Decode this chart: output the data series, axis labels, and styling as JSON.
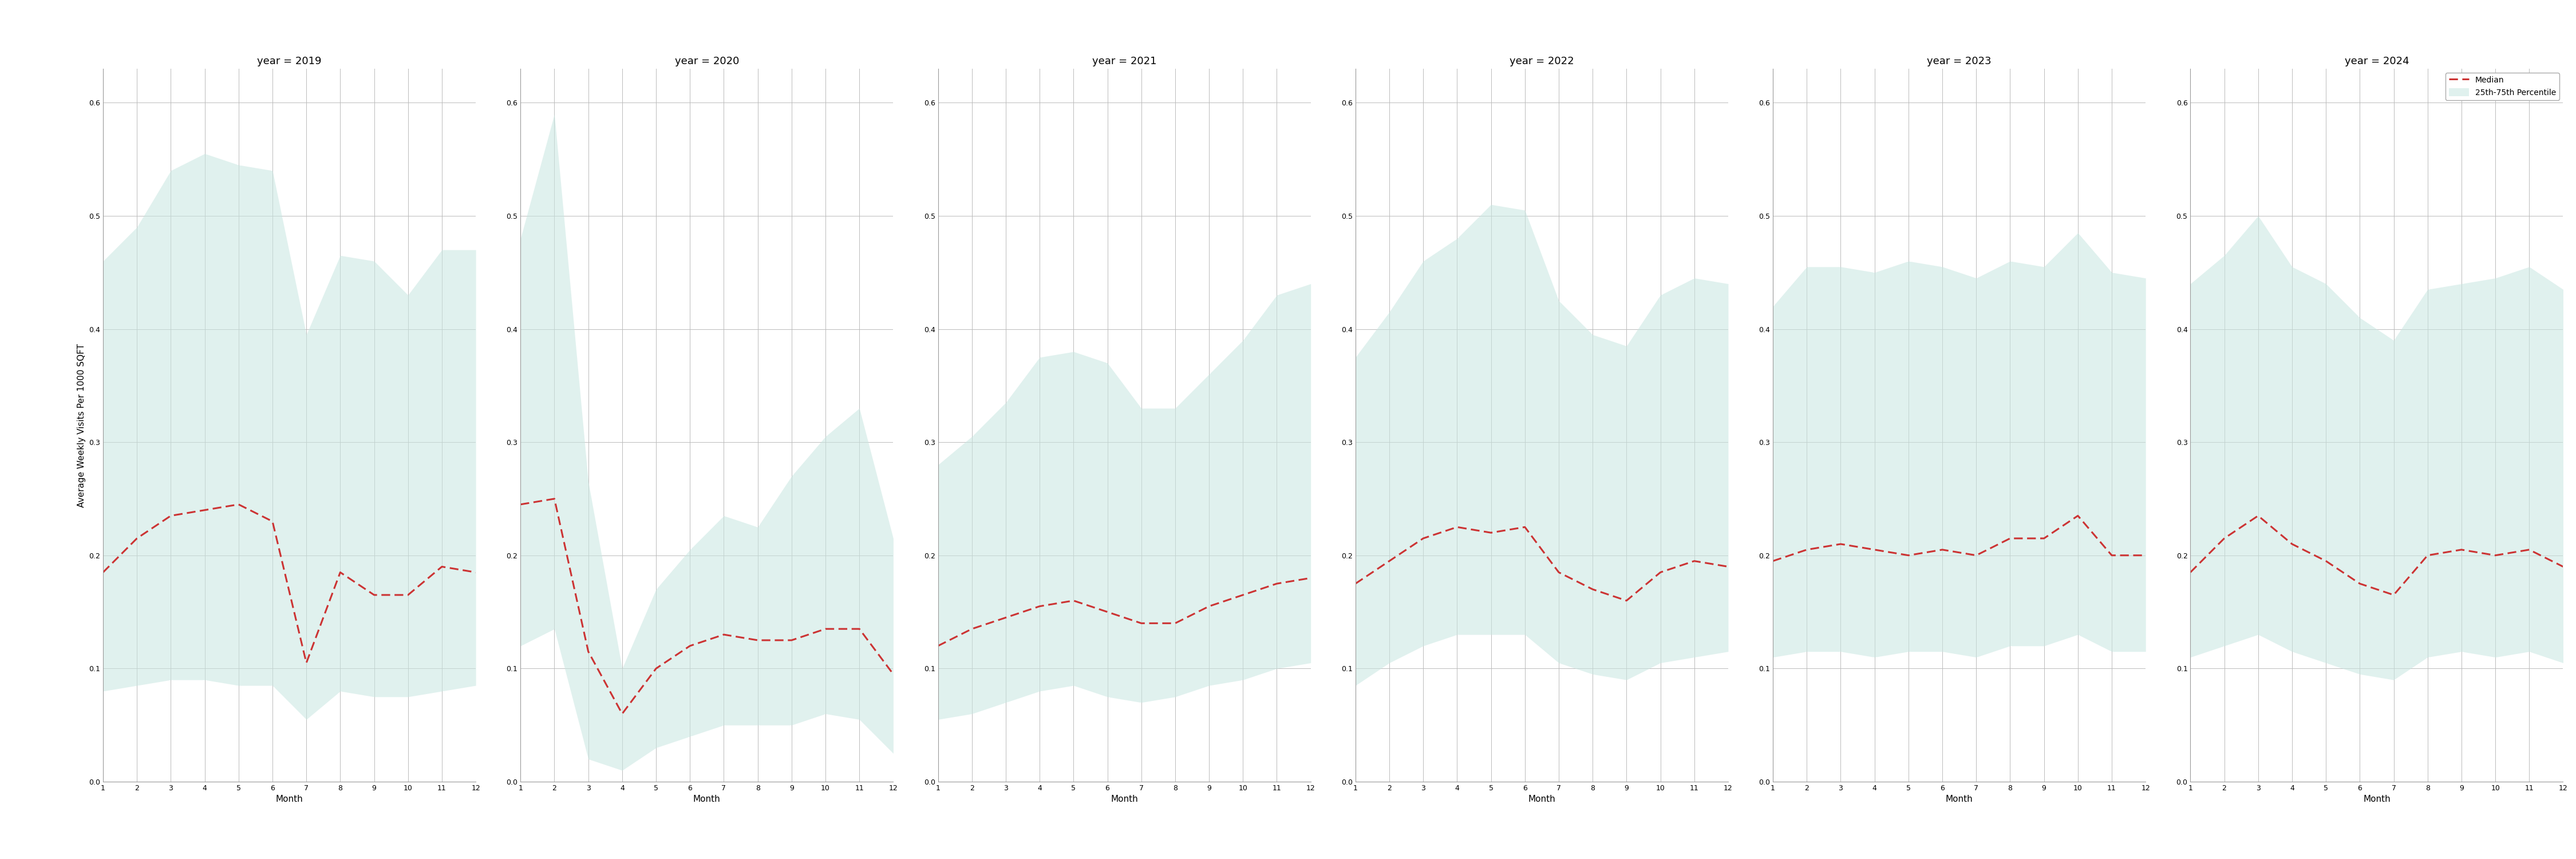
{
  "years": [
    2019,
    2020,
    2021,
    2022,
    2023,
    2024
  ],
  "months": [
    1,
    2,
    3,
    4,
    5,
    6,
    7,
    8,
    9,
    10,
    11,
    12
  ],
  "median": {
    "2019": [
      0.185,
      0.215,
      0.235,
      0.24,
      0.245,
      0.23,
      0.105,
      0.185,
      0.165,
      0.165,
      0.19,
      0.185
    ],
    "2020": [
      0.245,
      0.25,
      0.115,
      0.06,
      0.1,
      0.12,
      0.13,
      0.125,
      0.125,
      0.135,
      0.135,
      0.095
    ],
    "2021": [
      0.12,
      0.135,
      0.145,
      0.155,
      0.16,
      0.15,
      0.14,
      0.14,
      0.155,
      0.165,
      0.175,
      0.18
    ],
    "2022": [
      0.175,
      0.195,
      0.215,
      0.225,
      0.22,
      0.225,
      0.185,
      0.17,
      0.16,
      0.185,
      0.195,
      0.19
    ],
    "2023": [
      0.195,
      0.205,
      0.21,
      0.205,
      0.2,
      0.205,
      0.2,
      0.215,
      0.215,
      0.235,
      0.2,
      0.2
    ],
    "2024": [
      0.185,
      0.215,
      0.235,
      0.21,
      0.195,
      0.175,
      0.165,
      0.2,
      0.205,
      0.2,
      0.205,
      0.19
    ]
  },
  "p25": {
    "2019": [
      0.08,
      0.085,
      0.09,
      0.09,
      0.085,
      0.085,
      0.055,
      0.08,
      0.075,
      0.075,
      0.08,
      0.085
    ],
    "2020": [
      0.12,
      0.135,
      0.02,
      0.01,
      0.03,
      0.04,
      0.05,
      0.05,
      0.05,
      0.06,
      0.055,
      0.025
    ],
    "2021": [
      0.055,
      0.06,
      0.07,
      0.08,
      0.085,
      0.075,
      0.07,
      0.075,
      0.085,
      0.09,
      0.1,
      0.105
    ],
    "2022": [
      0.085,
      0.105,
      0.12,
      0.13,
      0.13,
      0.13,
      0.105,
      0.095,
      0.09,
      0.105,
      0.11,
      0.115
    ],
    "2023": [
      0.11,
      0.115,
      0.115,
      0.11,
      0.115,
      0.115,
      0.11,
      0.12,
      0.12,
      0.13,
      0.115,
      0.115
    ],
    "2024": [
      0.11,
      0.12,
      0.13,
      0.115,
      0.105,
      0.095,
      0.09,
      0.11,
      0.115,
      0.11,
      0.115,
      0.105
    ]
  },
  "p75": {
    "2019": [
      0.46,
      0.49,
      0.54,
      0.555,
      0.545,
      0.54,
      0.395,
      0.465,
      0.46,
      0.43,
      0.47,
      0.47
    ],
    "2020": [
      0.48,
      0.59,
      0.265,
      0.1,
      0.17,
      0.205,
      0.235,
      0.225,
      0.27,
      0.305,
      0.33,
      0.215
    ],
    "2021": [
      0.28,
      0.305,
      0.335,
      0.375,
      0.38,
      0.37,
      0.33,
      0.33,
      0.36,
      0.39,
      0.43,
      0.44
    ],
    "2022": [
      0.375,
      0.415,
      0.46,
      0.48,
      0.51,
      0.505,
      0.425,
      0.395,
      0.385,
      0.43,
      0.445,
      0.44
    ],
    "2023": [
      0.42,
      0.455,
      0.455,
      0.45,
      0.46,
      0.455,
      0.445,
      0.46,
      0.455,
      0.485,
      0.45,
      0.445
    ],
    "2024": [
      0.44,
      0.465,
      0.5,
      0.455,
      0.44,
      0.41,
      0.39,
      0.435,
      0.44,
      0.445,
      0.455,
      0.435
    ]
  },
  "fill_color": "#c8e6e1",
  "fill_alpha": 0.55,
  "line_color": "#cc3333",
  "ylabel": "Average Weekly Visits Per 1000 SQFT",
  "xlabel": "Month",
  "ylim": [
    0.0,
    0.63
  ],
  "yticks": [
    0.0,
    0.1,
    0.2,
    0.3,
    0.4,
    0.5,
    0.6
  ],
  "background_color": "#ffffff",
  "grid_color": "#bbbbbb",
  "title_fontsize": 13,
  "axis_label_fontsize": 11,
  "tick_fontsize": 9,
  "legend_fontsize": 10
}
